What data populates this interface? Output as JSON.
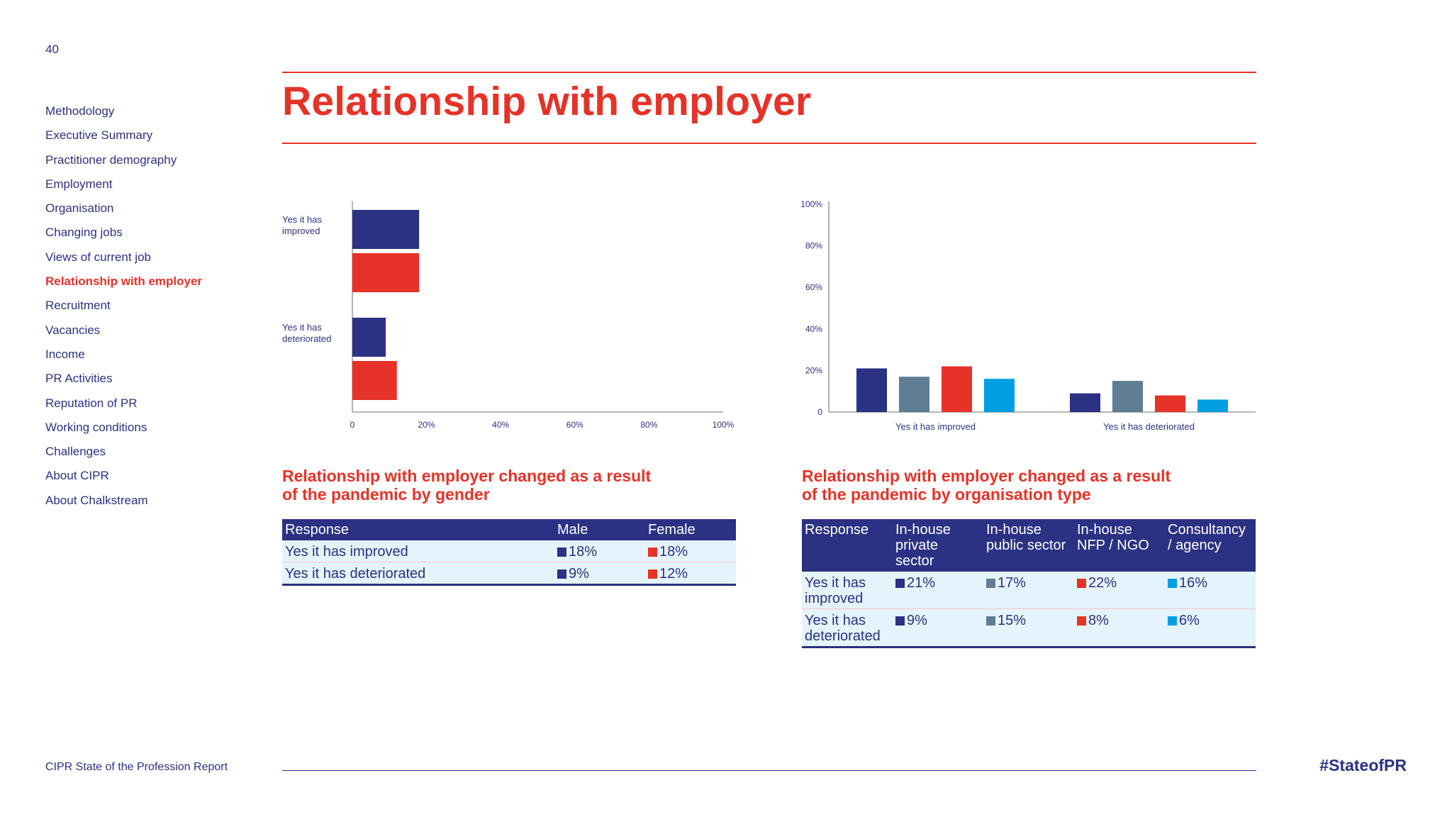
{
  "page_number": "40",
  "title": "Relationship with employer",
  "nav": [
    {
      "label": "Methodology"
    },
    {
      "label": "Executive Summary"
    },
    {
      "label": "Practitioner demography"
    },
    {
      "label": "Employment"
    },
    {
      "label": "Organisation"
    },
    {
      "label": "Changing jobs"
    },
    {
      "label": "Views of current job"
    },
    {
      "label": "Relationship with employer",
      "active": true
    },
    {
      "label": "Recruitment"
    },
    {
      "label": "Vacancies"
    },
    {
      "label": "Income"
    },
    {
      "label": "PR Activities"
    },
    {
      "label": "Reputation of PR"
    },
    {
      "label": "Working conditions"
    },
    {
      "label": "Challenges"
    },
    {
      "label": "About CIPR"
    },
    {
      "label": "About Chalkstream"
    }
  ],
  "colors": {
    "brand_red": "#e63228",
    "brand_navy": "#2b3183",
    "slate": "#5f7d95",
    "sky": "#009fe3",
    "row_bg": "#e5f3fc"
  },
  "chart_data": [
    {
      "type": "bar",
      "orientation": "horizontal",
      "categories": [
        "Yes it has improved",
        "Yes it has deteriorated"
      ],
      "category_labels": [
        [
          "Yes it has",
          "improved"
        ],
        [
          "Yes it has",
          "deteriorated"
        ]
      ],
      "series": [
        {
          "name": "Male",
          "color": "#2b3183",
          "values": [
            18,
            9
          ]
        },
        {
          "name": "Female",
          "color": "#e63228",
          "values": [
            18,
            12
          ]
        }
      ],
      "xlim": [
        0,
        100
      ],
      "xticks": [
        "0",
        "20%",
        "40%",
        "60%",
        "80%",
        "100%"
      ],
      "grid": false,
      "legend": "none"
    },
    {
      "type": "bar",
      "orientation": "vertical",
      "categories": [
        "Yes it has improved",
        "Yes it has deteriorated"
      ],
      "series": [
        {
          "name": "In-house private sector",
          "color": "#2b3183",
          "values": [
            21,
            9
          ]
        },
        {
          "name": "In-house public sector",
          "color": "#5f7d95",
          "values": [
            17,
            15
          ]
        },
        {
          "name": "In-house NFP / NGO",
          "color": "#e63228",
          "values": [
            22,
            8
          ]
        },
        {
          "name": "Consultancy / agency",
          "color": "#009fe3",
          "values": [
            16,
            6
          ]
        }
      ],
      "ylim": [
        0,
        100
      ],
      "yticks": [
        "0",
        "20%",
        "40%",
        "60%",
        "80%",
        "100%"
      ],
      "grid": false,
      "legend": "none"
    }
  ],
  "gender_section": {
    "subtitle_line1": "Relationship with employer changed as a result",
    "subtitle_line2": "of the pandemic by gender",
    "headers": [
      "Response",
      "Male",
      "Female"
    ],
    "rows": [
      {
        "response": "Yes it has improved",
        "male": "18%",
        "female": "18%"
      },
      {
        "response": "Yes it has deteriorated",
        "male": "9%",
        "female": "12%"
      }
    ]
  },
  "org_section": {
    "subtitle_line1": "Relationship with employer changed as a result",
    "subtitle_line2": "of the pandemic by organisation type",
    "headers": [
      [
        "Response"
      ],
      [
        "In-house",
        "private",
        "sector"
      ],
      [
        "In-house",
        "public sector"
      ],
      [
        "In-house",
        "NFP / NGO"
      ],
      [
        "Consultancy",
        "/ agency"
      ]
    ],
    "rows": [
      {
        "response": [
          "Yes it has",
          "improved"
        ],
        "values": [
          "21%",
          "17%",
          "22%",
          "16%"
        ]
      },
      {
        "response": [
          "Yes it has",
          "deteriorated"
        ],
        "values": [
          "9%",
          "15%",
          "8%",
          "6%"
        ]
      }
    ]
  },
  "footer": {
    "left": "CIPR State of the Profession Report",
    "hashtag": "#StateofPR"
  }
}
